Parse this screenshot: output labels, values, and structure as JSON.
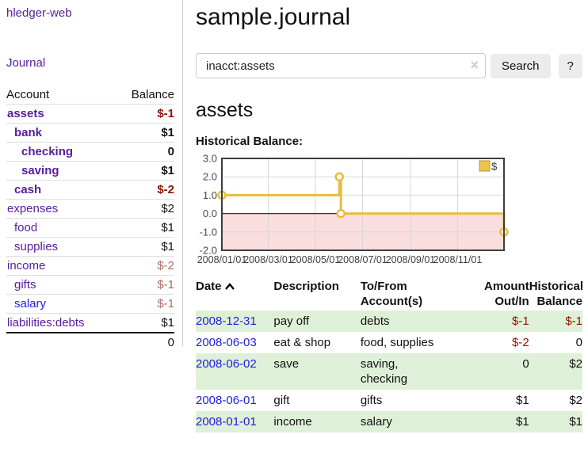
{
  "app": {
    "brand": "hledger-web",
    "nav_journal": "Journal"
  },
  "sidebar": {
    "table_headers": {
      "account": "Account",
      "balance": "Balance"
    },
    "accounts": [
      {
        "name": "assets",
        "depth": 1,
        "balance": "$-1",
        "bold": true,
        "neg": "strong",
        "link": "purple"
      },
      {
        "name": "bank",
        "depth": 2,
        "balance": "$1",
        "bold": true,
        "neg": "none",
        "link": "purple"
      },
      {
        "name": "checking",
        "depth": 3,
        "balance": "0",
        "bold": true,
        "neg": "none",
        "link": "purple"
      },
      {
        "name": "saving",
        "depth": 3,
        "balance": "$1",
        "bold": true,
        "neg": "none",
        "link": "purple"
      },
      {
        "name": "cash",
        "depth": 2,
        "balance": "$-2",
        "bold": true,
        "neg": "strong",
        "link": "purple"
      },
      {
        "name": "expenses",
        "depth": 1,
        "balance": "$2",
        "bold": false,
        "neg": "none",
        "link": "purple"
      },
      {
        "name": "food",
        "depth": 2,
        "balance": "$1",
        "bold": false,
        "neg": "none",
        "link": "purple"
      },
      {
        "name": "supplies",
        "depth": 2,
        "balance": "$1",
        "bold": false,
        "neg": "none",
        "link": "purple"
      },
      {
        "name": "income",
        "depth": 1,
        "balance": "$-2",
        "bold": false,
        "neg": "muted",
        "link": "purple"
      },
      {
        "name": "gifts",
        "depth": 2,
        "balance": "$-1",
        "bold": false,
        "neg": "muted",
        "link": "purple"
      },
      {
        "name": "salary",
        "depth": 2,
        "balance": "$-1",
        "bold": false,
        "neg": "muted",
        "link": "blue"
      },
      {
        "name": "liabilities:debts",
        "depth": 1,
        "balance": "$1",
        "bold": false,
        "neg": "none",
        "link": "purple"
      }
    ],
    "total": "0"
  },
  "main": {
    "title": "sample.journal",
    "search": {
      "value": "inacct:assets",
      "clear_icon": "×",
      "search_button": "Search",
      "help_button": "?"
    },
    "account_heading": "assets",
    "chart_label": "Historical Balance:"
  },
  "chart_data": {
    "type": "line",
    "step": true,
    "title": "Historical Balance",
    "series": [
      {
        "name": "$",
        "color": "#e9bc40",
        "points": [
          [
            "2008-01-01",
            1
          ],
          [
            "2008-06-01",
            2
          ],
          [
            "2008-06-03",
            0
          ],
          [
            "2008-12-31",
            -1
          ]
        ]
      }
    ],
    "x_ticks": [
      "2008/01/01",
      "2008/03/01",
      "2008/05/01",
      "2008/07/01",
      "2008/09/01",
      "2008/11/01"
    ],
    "y_ticks": [
      3.0,
      2.0,
      1.0,
      0.0,
      -1.0,
      -2.0
    ],
    "ylim": [
      -2,
      3
    ],
    "x_range_days": [
      "2008-01-01",
      "2008-12-31"
    ],
    "grid": true,
    "negative_region_color": "#fadddd",
    "zero_line_color": "#a00000",
    "legend": {
      "label": "$",
      "swatch_fill": "#ecc648",
      "swatch_border": "#b8952c",
      "position": "top-right"
    }
  },
  "register": {
    "columns": [
      "Date",
      "Description",
      "To/From\nAccount(s)",
      "Amount\nOut/In",
      "Historical\nBalance"
    ],
    "sort_icon": "chevron-up",
    "rows": [
      {
        "date": "2008-12-31",
        "description": "pay off",
        "accounts": "debts",
        "amount": "$-1",
        "balance": "$-1"
      },
      {
        "date": "2008-06-03",
        "description": "eat & shop",
        "accounts": "food, supplies",
        "amount": "$-2",
        "balance": "0"
      },
      {
        "date": "2008-06-02",
        "description": "save",
        "accounts": "saving,\nchecking",
        "amount": "0",
        "balance": "$2"
      },
      {
        "date": "2008-06-01",
        "description": "gift",
        "accounts": "gifts",
        "amount": "$1",
        "balance": "$2"
      },
      {
        "date": "2008-01-01",
        "description": "income",
        "accounts": "salary",
        "amount": "$1",
        "balance": "$1"
      }
    ]
  }
}
